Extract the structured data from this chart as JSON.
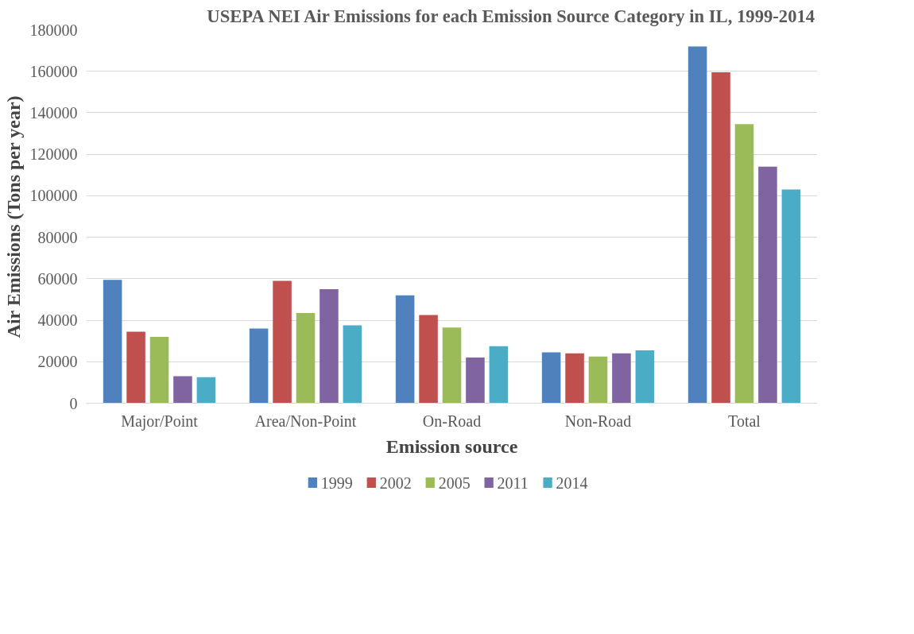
{
  "chart_data": {
    "type": "bar",
    "title": "USEPA NEI Air Emissions for each Emission Source Category in IL, 1999-2014",
    "xlabel": "Emission source",
    "ylabel": "Air Emissions (Tons per year)",
    "categories": [
      "Major/Point",
      "Area/Non-Point",
      "On-Road",
      "Non-Road",
      "Total"
    ],
    "series": [
      {
        "name": "1999",
        "color": "#4f81bd",
        "values": [
          59500,
          36000,
          52000,
          24500,
          172000
        ]
      },
      {
        "name": "2002",
        "color": "#c0504d",
        "values": [
          34500,
          59000,
          42500,
          24000,
          159500
        ]
      },
      {
        "name": "2005",
        "color": "#9bbb59",
        "values": [
          32000,
          43500,
          36500,
          22500,
          134500
        ]
      },
      {
        "name": "2011",
        "color": "#8064a2",
        "values": [
          13000,
          55000,
          22000,
          24000,
          114000
        ]
      },
      {
        "name": "2014",
        "color": "#4bacc6",
        "values": [
          12500,
          37500,
          27500,
          25500,
          103000
        ]
      }
    ],
    "ylim": [
      0,
      180000
    ],
    "yticks": [
      0,
      20000,
      40000,
      60000,
      80000,
      100000,
      120000,
      140000,
      160000,
      180000
    ],
    "grid": "y",
    "legend": "bottom"
  }
}
